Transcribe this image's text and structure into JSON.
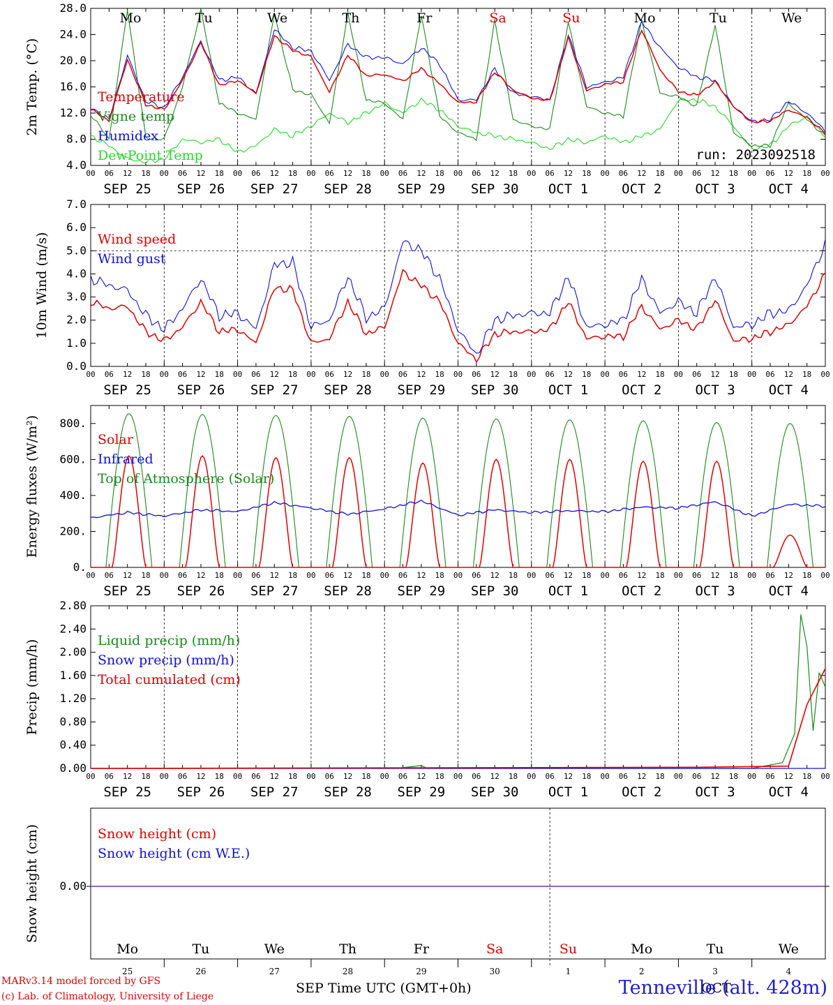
{
  "run_label": "run: 2023092518",
  "x_title": "Time UTC (GMT+0h)",
  "x_month_start": "SEP",
  "x_month_end": "OCT",
  "station": "Tenneville (alt. 428m)",
  "credits": [
    "MARv3.14 model forced by GFS",
    "(c) Lab. of Climatology, University of Liege"
  ],
  "hour_ticks": [
    "00",
    "06",
    "12",
    "18"
  ],
  "day_labels": [
    "SEP 25",
    "SEP 26",
    "SEP 27",
    "SEP 28",
    "SEP 29",
    "SEP 30",
    "OCT  1",
    "OCT  2",
    "OCT  3",
    "OCT  4"
  ],
  "day_numbers": [
    "25",
    "26",
    "27",
    "28",
    "29",
    "30",
    "1",
    "2",
    "3",
    "4"
  ],
  "weekdays": [
    "Mo",
    "Tu",
    "We",
    "Th",
    "Fr",
    "Sa",
    "Su",
    "Mo",
    "Tu",
    "We"
  ],
  "weekend_color": "#e00000",
  "weekend_days": [
    "Sa",
    "Su"
  ],
  "colors": {
    "red": "#e00000",
    "green": "#1a8a1a",
    "blue": "#1010e0",
    "lightgreen": "#22dd22",
    "purple": "#7030a0"
  },
  "chart_data": [
    {
      "type": "line",
      "ylabel": "2m Temp. (°C)",
      "ylim": [
        4.0,
        28.0
      ],
      "yticks": [
        "4.0",
        "8.0",
        "12.0",
        "16.0",
        "20.0",
        "24.0",
        "28.0"
      ],
      "x_unit": "hours since SEP 25 00 UTC",
      "series": [
        {
          "name": "Temperature",
          "color": "#e00000",
          "x": [
            0,
            6,
            12,
            18,
            24,
            30,
            36,
            42,
            48,
            54,
            60,
            66,
            72,
            78,
            84,
            90,
            96,
            102,
            108,
            114,
            120,
            126,
            132,
            138,
            144,
            150,
            156,
            162,
            168,
            174,
            180,
            186,
            192,
            198,
            204,
            210,
            216,
            222,
            228,
            234,
            240
          ],
          "values": [
            12.6,
            10.8,
            20.2,
            13.3,
            12.5,
            17.0,
            22.8,
            16.2,
            17.0,
            15.0,
            23.8,
            21.6,
            20.6,
            15.2,
            20.9,
            17.7,
            17.9,
            16.9,
            18.8,
            16.5,
            13.6,
            13.7,
            18.3,
            15.5,
            14.3,
            13.9,
            23.5,
            15.4,
            16.4,
            16.8,
            24.8,
            18.6,
            15.3,
            14.7,
            16.8,
            13.0,
            10.6,
            10.8,
            12.5,
            11.3,
            8.9
          ]
        },
        {
          "name": "Vigne temp",
          "color": "#1a8a1a",
          "x": [
            0,
            6,
            12,
            18,
            24,
            30,
            36,
            42,
            48,
            54,
            60,
            66,
            72,
            78,
            84,
            90,
            96,
            102,
            108,
            114,
            120,
            126,
            132,
            138,
            144,
            150,
            156,
            162,
            168,
            174,
            180,
            186,
            192,
            198,
            204,
            210,
            216,
            222,
            228,
            234,
            240
          ],
          "values": [
            11.8,
            8.0,
            27.8,
            8.2,
            8.0,
            16.0,
            27.8,
            13.5,
            12.0,
            11.0,
            27.2,
            15.5,
            14.8,
            10.5,
            27.2,
            14.0,
            13.5,
            11.0,
            27.0,
            11.5,
            9.0,
            8.0,
            26.2,
            11.0,
            10.0,
            9.5,
            26.0,
            13.0,
            12.0,
            11.5,
            26.2,
            15.0,
            14.5,
            13.0,
            25.5,
            9.0,
            7.0,
            7.0,
            13.5,
            11.0,
            8.5
          ]
        },
        {
          "name": "Humidex",
          "color": "#1010e0",
          "x": [
            0,
            6,
            12,
            18,
            24,
            30,
            36,
            42,
            48,
            54,
            60,
            66,
            72,
            78,
            84,
            90,
            96,
            102,
            108,
            114,
            120,
            126,
            132,
            138,
            144,
            150,
            156,
            162,
            168,
            174,
            180,
            186,
            192,
            198,
            204,
            210,
            216,
            222,
            228,
            234,
            240
          ],
          "values": [
            12.8,
            11.0,
            20.8,
            13.8,
            12.8,
            17.5,
            23.0,
            17.0,
            17.5,
            15.0,
            24.8,
            22.0,
            21.5,
            17.0,
            22.5,
            20.5,
            20.5,
            19.5,
            22.0,
            19.5,
            14.0,
            14.0,
            18.8,
            15.0,
            14.5,
            14.0,
            24.0,
            16.0,
            16.7,
            17.5,
            26.0,
            22.0,
            19.0,
            17.5,
            17.0,
            13.0,
            10.7,
            11.0,
            13.8,
            12.0,
            9.3
          ]
        },
        {
          "name": "DewPoint Temp",
          "color": "#22dd22",
          "x": [
            0,
            6,
            12,
            18,
            24,
            30,
            36,
            42,
            48,
            54,
            60,
            66,
            72,
            78,
            84,
            90,
            96,
            102,
            108,
            114,
            120,
            126,
            132,
            138,
            144,
            150,
            156,
            162,
            168,
            174,
            180,
            186,
            192,
            198,
            204,
            210,
            216,
            222,
            228,
            234,
            240
          ],
          "values": [
            8.5,
            7.0,
            5.0,
            4.5,
            5.0,
            8.0,
            7.5,
            8.0,
            6.0,
            7.0,
            9.5,
            8.5,
            10.0,
            12.0,
            10.5,
            12.0,
            13.5,
            12.0,
            14.0,
            12.5,
            10.0,
            9.0,
            8.5,
            8.0,
            7.5,
            6.5,
            8.0,
            7.5,
            8.5,
            7.5,
            8.5,
            9.5,
            14.0,
            14.0,
            13.0,
            10.0,
            6.5,
            7.0,
            10.0,
            11.5,
            8.5
          ]
        }
      ],
      "legend_placement": "left"
    },
    {
      "type": "line",
      "ylabel": "10m Wind (m/s)",
      "ylim": [
        0.0,
        7.0
      ],
      "yticks": [
        "0.0",
        "1.0",
        "2.0",
        "3.0",
        "4.0",
        "5.0",
        "6.0",
        "7.0"
      ],
      "ref_line": 5.0,
      "series": [
        {
          "name": "Wind speed",
          "color": "#e00000",
          "x": [
            0,
            6,
            12,
            18,
            24,
            30,
            36,
            42,
            48,
            54,
            60,
            66,
            72,
            78,
            84,
            90,
            96,
            102,
            108,
            114,
            120,
            126,
            132,
            138,
            144,
            150,
            156,
            162,
            168,
            174,
            180,
            186,
            192,
            198,
            204,
            210,
            216,
            222,
            228,
            234,
            240
          ],
          "values": [
            2.8,
            2.5,
            2.6,
            1.5,
            1.1,
            1.7,
            2.8,
            1.5,
            1.6,
            1.0,
            3.4,
            3.3,
            1.0,
            1.2,
            2.8,
            1.4,
            1.7,
            4.1,
            3.5,
            2.8,
            1.0,
            0.3,
            1.4,
            1.5,
            1.5,
            1.6,
            2.8,
            1.2,
            1.3,
            1.3,
            2.6,
            1.6,
            2.0,
            1.6,
            2.9,
            1.1,
            1.2,
            1.5,
            1.8,
            2.6,
            4.0
          ]
        },
        {
          "name": "Wind gust",
          "color": "#1010e0",
          "x": [
            0,
            6,
            12,
            18,
            24,
            30,
            36,
            42,
            48,
            54,
            60,
            66,
            72,
            78,
            84,
            90,
            96,
            102,
            108,
            114,
            120,
            126,
            132,
            138,
            144,
            150,
            156,
            162,
            168,
            174,
            180,
            186,
            192,
            198,
            204,
            210,
            216,
            222,
            228,
            234,
            240
          ],
          "values": [
            3.8,
            3.5,
            3.3,
            2.2,
            1.6,
            2.5,
            3.8,
            2.2,
            2.3,
            1.6,
            4.4,
            4.5,
            1.7,
            2.0,
            3.9,
            2.1,
            2.5,
            5.4,
            5.0,
            3.8,
            1.6,
            0.5,
            2.0,
            2.2,
            2.3,
            2.3,
            3.9,
            1.7,
            1.8,
            2.0,
            3.8,
            2.3,
            2.8,
            2.3,
            3.9,
            1.7,
            1.8,
            2.3,
            2.4,
            3.5,
            5.3
          ]
        }
      ],
      "legend_placement": "left"
    },
    {
      "type": "line",
      "ylabel": "Energy fluxes (W/m²)",
      "ylim": [
        0,
        900
      ],
      "yticks": [
        "0.",
        "200.",
        "400.",
        "600.",
        "800."
      ],
      "series": [
        {
          "name": "Solar",
          "color": "#e00000",
          "peaks": [
            620,
            620,
            610,
            610,
            580,
            600,
            600,
            590,
            590,
            180
          ]
        },
        {
          "name": "Infrared",
          "color": "#1010e0",
          "x": [
            0,
            12,
            24,
            36,
            48,
            60,
            72,
            84,
            96,
            108,
            120,
            132,
            144,
            156,
            168,
            180,
            192,
            204,
            216,
            228,
            240
          ],
          "values": [
            275,
            305,
            285,
            320,
            310,
            360,
            330,
            295,
            325,
            370,
            290,
            320,
            305,
            315,
            310,
            335,
            330,
            365,
            285,
            350,
            340
          ]
        },
        {
          "name": "Top of Atmosphere (Solar)",
          "color": "#1a8a1a",
          "peaks": [
            855,
            850,
            845,
            840,
            830,
            825,
            820,
            815,
            805,
            800
          ]
        }
      ],
      "legend_placement": "left"
    },
    {
      "type": "line",
      "ylabel": "Precip (mm/h)",
      "ylim": [
        0.0,
        2.8
      ],
      "yticks": [
        "0.00",
        "0.40",
        "0.80",
        "1.20",
        "1.60",
        "2.00",
        "2.40",
        "2.80"
      ],
      "series": [
        {
          "name": "Liquid precip (mm/h)",
          "color": "#1a8a1a",
          "x": [
            0,
            100,
            108,
            110,
            216,
            226,
            230,
            232,
            234,
            236,
            238,
            240
          ],
          "values": [
            0,
            0,
            0.05,
            0,
            0,
            0.1,
            0.6,
            2.65,
            2.1,
            0.65,
            1.65,
            1.4
          ]
        },
        {
          "name": "Snow precip (mm/h)",
          "color": "#1010e0",
          "x": [
            0,
            240
          ],
          "values": [
            0,
            0
          ]
        },
        {
          "name": "Total cumulated (cm)",
          "color": "#e00000",
          "x": [
            0,
            100,
            200,
            228,
            234,
            240
          ],
          "values": [
            0,
            0.01,
            0.02,
            0.04,
            1.1,
            1.72
          ]
        }
      ],
      "legend_placement": "left"
    },
    {
      "type": "line",
      "ylabel": "Snow height (cm)",
      "yticks": [
        "0.00"
      ],
      "series": [
        {
          "name": "Snow height (cm)",
          "color": "#e00000",
          "x": [
            0,
            240
          ],
          "values": [
            0,
            0
          ]
        },
        {
          "name": "Snow height (cm W.E.)",
          "color": "#1010e0",
          "x": [
            0,
            240
          ],
          "values": [
            0,
            0
          ]
        }
      ],
      "legend_placement": "left"
    }
  ]
}
